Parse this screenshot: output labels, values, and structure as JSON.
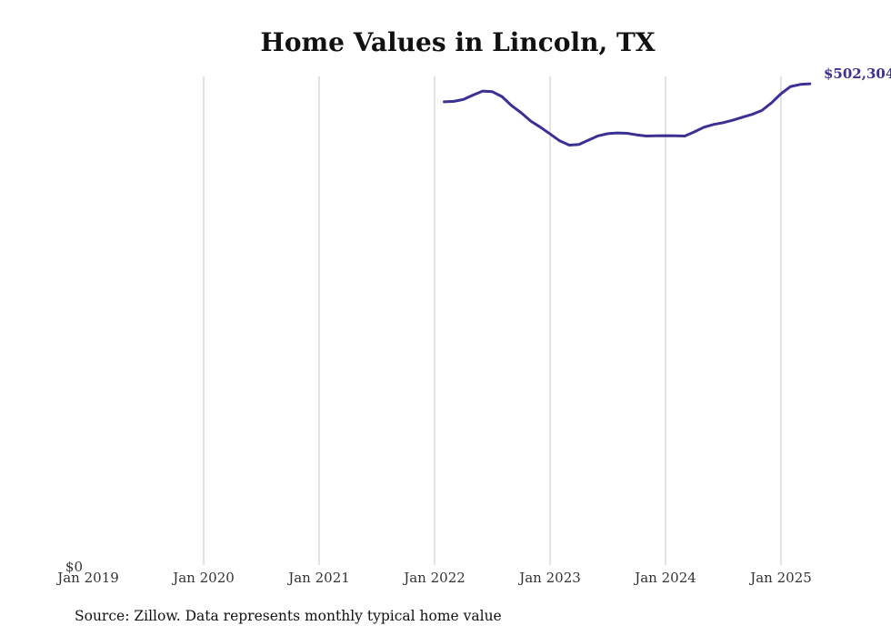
{
  "chart_data": {
    "type": "line",
    "title": "Home Values in Lincoln, TX",
    "source": "Source: Zillow. Data represents monthly typical home value",
    "xlabel": "",
    "ylabel": "",
    "y_tick_label": "$0",
    "x_ticks": [
      "Jan 2019",
      "Jan 2020",
      "Jan 2021",
      "Jan 2022",
      "Jan 2023",
      "Jan 2024",
      "Jan 2025"
    ],
    "xlim": [
      "2019-01",
      "2025-05"
    ],
    "ylim": [
      0,
      510000
    ],
    "grid": "vertical",
    "legend": "none",
    "line_color": "#3b3094",
    "end_label": "$502,304",
    "series": [
      {
        "x": [
          "2022-02",
          "2022-03",
          "2022-04",
          "2022-05",
          "2022-06",
          "2022-07",
          "2022-08",
          "2022-09",
          "2022-10",
          "2022-11",
          "2022-12",
          "2023-01",
          "2023-02",
          "2023-03",
          "2023-04",
          "2023-05",
          "2023-06",
          "2023-07",
          "2023-08",
          "2023-09",
          "2023-10",
          "2023-11",
          "2023-12",
          "2024-01",
          "2024-02",
          "2024-03",
          "2024-04",
          "2024-05",
          "2024-06",
          "2024-07",
          "2024-08",
          "2024-09",
          "2024-10",
          "2024-11",
          "2024-12",
          "2025-01",
          "2025-02",
          "2025-03",
          "2025-04"
        ],
        "y": [
          483500,
          484000,
          486000,
          490500,
          494700,
          494000,
          489000,
          479500,
          472000,
          463400,
          457000,
          450000,
          442800,
          438300,
          439000,
          443500,
          448000,
          450300,
          451000,
          450600,
          449000,
          447800,
          448000,
          448200,
          448000,
          447800,
          452200,
          457000,
          459900,
          461800,
          464300,
          467500,
          470400,
          474400,
          482300,
          492000,
          499500,
          501600,
          502304
        ]
      }
    ]
  }
}
